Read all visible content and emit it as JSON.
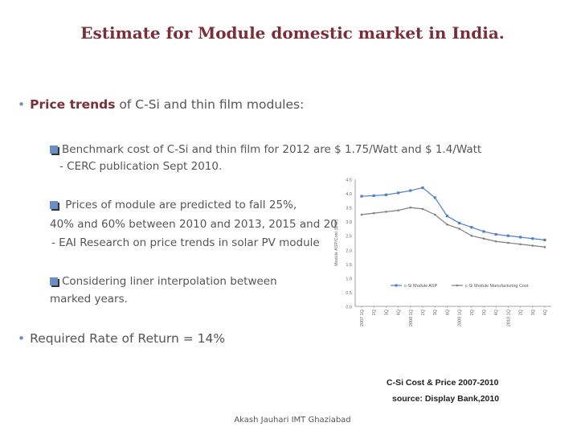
{
  "slide": {
    "title": "Estimate for Module domestic market in India.",
    "bullet1_bold": "Price trends",
    "bullet1_rest": " of C-Si and thin film modules:",
    "item1_line1": "Benchmark cost of C-Si and thin film for 2012 are $ 1.75/Watt and $ 1.4/Watt",
    "item1_line2": "- CERC publication Sept 2010.",
    "item2_line1": " Prices of module are predicted to fall 25%,",
    "item2_line2": "40% and 60% between 2010 and 2013,  2015 and   20",
    "item2_line3": "- EAI Research on price trends in solar PV module",
    "item3_line1": "Considering liner interpolation between",
    "item3_line2": "marked years.",
    "bullet2": "Required Rate of Return = 14%",
    "caption1": "C-Si Cost & Price 2007-2010",
    "caption2": "source: Display Bank,2010",
    "footer": "Akash Jauhari IMT Ghaziabad"
  },
  "colors": {
    "title": "#7a2e3a",
    "asp": "#4f7fc9",
    "cost": "#7f7f7f",
    "bullet": "#6b8fc4"
  },
  "chart_data": {
    "type": "line",
    "ylabel": "Module ASP/Cost ($/W)",
    "ylim": [
      0,
      4.5
    ],
    "yticks": [
      "0.0",
      "0.5",
      "1.0",
      "1.5",
      "2.0",
      "2.5",
      "3.0",
      "3.5",
      "4.0",
      "4.5"
    ],
    "categories": [
      "2007 1Q",
      "2Q",
      "3Q",
      "4Q",
      "2008 1Q",
      "2Q",
      "3Q",
      "4Q",
      "2009 1Q",
      "2Q",
      "3Q",
      "4Q",
      "2010 1Q",
      "2Q",
      "3Q",
      "4Q"
    ],
    "series": [
      {
        "name": "c-Si Module ASP",
        "values": [
          3.9,
          3.92,
          3.95,
          4.02,
          4.1,
          4.2,
          3.85,
          3.2,
          2.95,
          2.8,
          2.65,
          2.55,
          2.5,
          2.45,
          2.4,
          2.35
        ]
      },
      {
        "name": "c-Si Module Manufacturing Cost",
        "values": [
          3.25,
          3.3,
          3.35,
          3.4,
          3.5,
          3.45,
          3.25,
          2.9,
          2.75,
          2.5,
          2.4,
          2.3,
          2.25,
          2.2,
          2.15,
          2.1
        ]
      }
    ],
    "grid": false,
    "legend_position": "bottom-center"
  }
}
